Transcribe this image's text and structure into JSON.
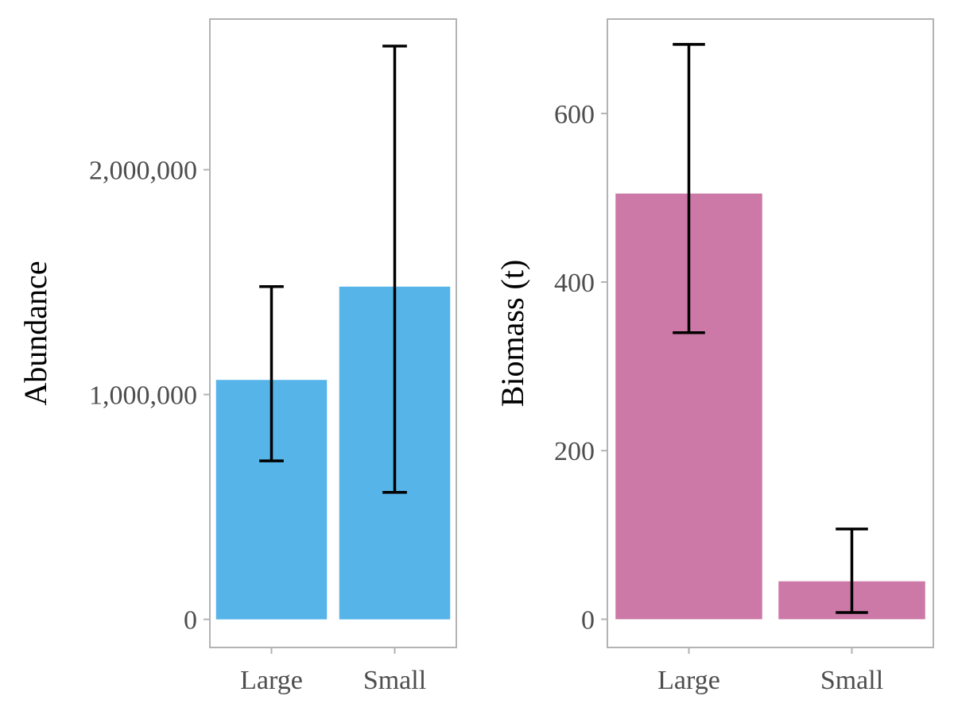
{
  "chart_data": [
    {
      "type": "bar",
      "title": "",
      "xlabel": "",
      "ylabel": "Abundance",
      "categories": [
        "Large",
        "Small"
      ],
      "values": [
        1065000,
        1480000
      ],
      "error_low": [
        705000,
        565000
      ],
      "error_high": [
        1480000,
        2550000
      ],
      "ylim": [
        -125000,
        2670000
      ],
      "yticks": [
        0,
        1000000,
        2000000
      ],
      "ytick_labels": [
        "0",
        "1,000,000",
        "2,000,000"
      ],
      "color": "#56B4E9",
      "grid": false,
      "legend": "none"
    },
    {
      "type": "bar",
      "title": "",
      "xlabel": "",
      "ylabel": "Biomass (t)",
      "categories": [
        "Large",
        "Small"
      ],
      "values": [
        505,
        45
      ],
      "error_low": [
        340,
        8
      ],
      "error_high": [
        682,
        107
      ],
      "ylim": [
        -33.5,
        712
      ],
      "yticks": [
        0,
        200,
        400,
        600
      ],
      "ytick_labels": [
        "0",
        "200",
        "400",
        "600"
      ],
      "color": "#CC79A7",
      "grid": false,
      "legend": "none"
    }
  ]
}
